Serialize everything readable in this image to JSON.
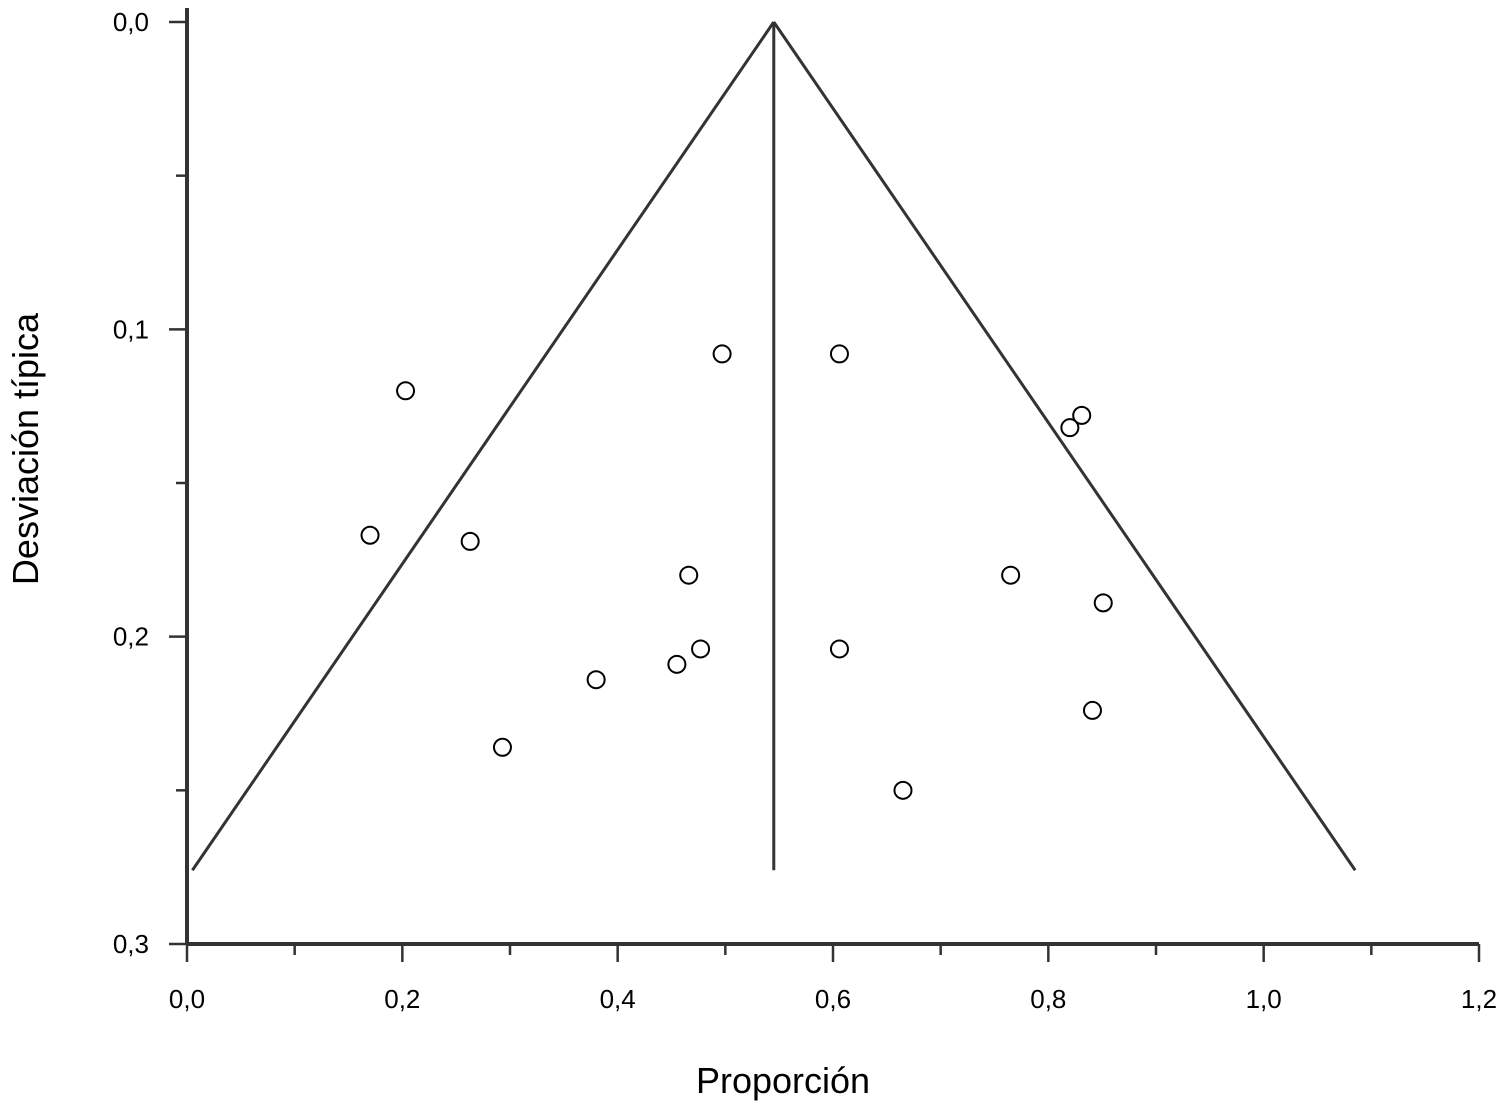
{
  "chart_data": {
    "type": "scatter",
    "subtype": "funnel-plot",
    "xlabel": "Proporción",
    "ylabel": "Desviación típica",
    "xlim": [
      0.0,
      1.2
    ],
    "ylim": [
      0.0,
      0.3
    ],
    "y_inverted": true,
    "x_ticks": [
      {
        "value": 0.0,
        "label": "0,0"
      },
      {
        "value": 0.2,
        "label": "0,2"
      },
      {
        "value": 0.4,
        "label": "0,4"
      },
      {
        "value": 0.6,
        "label": "0,6"
      },
      {
        "value": 0.8,
        "label": "0,8"
      },
      {
        "value": 1.0,
        "label": "1,0"
      },
      {
        "value": 1.2,
        "label": "1,2"
      }
    ],
    "x_minor_ticks": [
      0.1,
      0.3,
      0.5,
      0.7,
      0.9,
      1.1
    ],
    "y_ticks": [
      {
        "value": 0.0,
        "label": "0,0"
      },
      {
        "value": 0.1,
        "label": "0,1"
      },
      {
        "value": 0.2,
        "label": "0,2"
      },
      {
        "value": 0.3,
        "label": "0,3"
      }
    ],
    "y_minor_ticks": [
      0.05,
      0.15,
      0.25
    ],
    "grid": false,
    "pooled_estimate": 0.545,
    "funnel": {
      "apex": {
        "x": 0.545,
        "y": 0.0
      },
      "left_end": {
        "x": 0.005,
        "y": 0.276
      },
      "right_end": {
        "x": 1.085,
        "y": 0.276
      },
      "center_line_end_y": 0.276
    },
    "points": [
      {
        "x": 0.497,
        "y": 0.108
      },
      {
        "x": 0.606,
        "y": 0.108
      },
      {
        "x": 0.203,
        "y": 0.12
      },
      {
        "x": 0.831,
        "y": 0.128
      },
      {
        "x": 0.82,
        "y": 0.132
      },
      {
        "x": 0.17,
        "y": 0.167
      },
      {
        "x": 0.263,
        "y": 0.169
      },
      {
        "x": 0.466,
        "y": 0.18
      },
      {
        "x": 0.765,
        "y": 0.18
      },
      {
        "x": 0.851,
        "y": 0.189
      },
      {
        "x": 0.477,
        "y": 0.204
      },
      {
        "x": 0.606,
        "y": 0.204
      },
      {
        "x": 0.455,
        "y": 0.209
      },
      {
        "x": 0.38,
        "y": 0.214
      },
      {
        "x": 0.841,
        "y": 0.224
      },
      {
        "x": 0.293,
        "y": 0.236
      },
      {
        "x": 0.665,
        "y": 0.25
      }
    ]
  }
}
